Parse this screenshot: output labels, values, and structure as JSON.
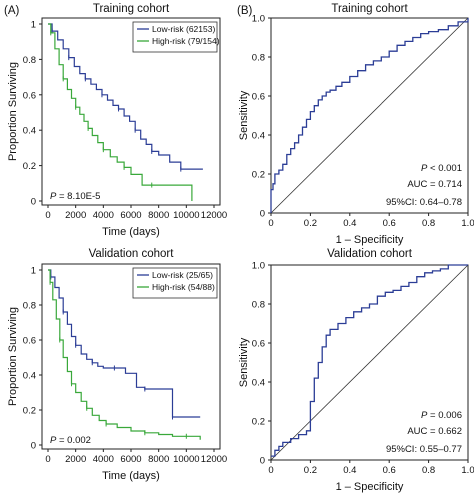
{
  "figure": {
    "panel_a_label": "(A)",
    "panel_b_label": "(B)"
  },
  "colors": {
    "low_risk": "#2b3d96",
    "high_risk": "#39a83a",
    "roc": "#2b3d96",
    "axis": "#222222"
  },
  "chart_data": [
    {
      "id": "km-training",
      "type": "line",
      "subtype": "kaplan-meier",
      "title": "Training cohort",
      "xlabel": "Time (days)",
      "ylabel": "Proportion Surviving",
      "xlim": [
        0,
        12000
      ],
      "ylim": [
        0,
        1
      ],
      "xticks": [
        0,
        2000,
        4000,
        6000,
        8000,
        10000,
        12000
      ],
      "yticks": [
        0,
        0.2,
        0.4,
        0.6,
        0.8,
        1
      ],
      "annotation_prefix": "P",
      "annotation_value": " = 8.10E-5",
      "legend_position": "top-right",
      "series": [
        {
          "name": "Low-risk (62153)",
          "color": "#2b3d96",
          "x": [
            0,
            300,
            700,
            1100,
            1500,
            1900,
            2300,
            2700,
            3100,
            3500,
            3900,
            4300,
            4700,
            5100,
            5500,
            5900,
            6300,
            6700,
            7100,
            7500,
            8000,
            8800,
            9600,
            10400,
            11200
          ],
          "y": [
            1.0,
            0.96,
            0.91,
            0.86,
            0.81,
            0.76,
            0.72,
            0.69,
            0.66,
            0.63,
            0.6,
            0.57,
            0.54,
            0.52,
            0.48,
            0.45,
            0.4,
            0.35,
            0.32,
            0.28,
            0.26,
            0.22,
            0.18,
            0.18,
            0.18
          ]
        },
        {
          "name": "High-risk (79/154)",
          "color": "#39a83a",
          "x": [
            0,
            200,
            500,
            800,
            1100,
            1400,
            1700,
            2000,
            2300,
            2600,
            2900,
            3200,
            3600,
            4000,
            4500,
            5000,
            5500,
            6000,
            6800,
            7500,
            8500,
            9500,
            10400
          ],
          "y": [
            1.0,
            0.95,
            0.86,
            0.77,
            0.69,
            0.63,
            0.58,
            0.53,
            0.49,
            0.45,
            0.41,
            0.37,
            0.33,
            0.29,
            0.25,
            0.22,
            0.19,
            0.15,
            0.09,
            0.09,
            0.09,
            0.09,
            0.0
          ]
        }
      ]
    },
    {
      "id": "roc-training",
      "type": "line",
      "subtype": "roc",
      "title": "Training cohort",
      "xlabel": "1 – Specificity",
      "ylabel": "Sensitivity",
      "xlim": [
        0,
        1
      ],
      "ylim": [
        0,
        1
      ],
      "xticks": [
        0,
        0.2,
        0.4,
        0.6,
        0.8,
        1
      ],
      "xtick_labels": [
        "0",
        "0.2",
        "0.4",
        "0.6",
        "0.8",
        "1.0"
      ],
      "yticks": [
        0,
        0.2,
        0.4,
        0.6,
        0.8,
        1
      ],
      "ytick_labels": [
        "0",
        "0.2",
        "0.4",
        "0.6",
        "0.8",
        "1.0"
      ],
      "stats": {
        "p_prefix": "P",
        "p_value": " < 0.001",
        "auc": "AUC = 0.714",
        "ci": "95%CI: 0.64–0.78"
      },
      "series": [
        {
          "name": "",
          "color": "#2b3d96",
          "x": [
            0,
            0,
            0.01,
            0.02,
            0.04,
            0.06,
            0.08,
            0.1,
            0.12,
            0.14,
            0.16,
            0.18,
            0.2,
            0.22,
            0.24,
            0.26,
            0.28,
            0.3,
            0.33,
            0.36,
            0.4,
            0.44,
            0.48,
            0.52,
            0.56,
            0.6,
            0.64,
            0.68,
            0.72,
            0.76,
            0.8,
            0.85,
            0.9,
            0.95,
            1.0
          ],
          "y": [
            0,
            0.12,
            0.15,
            0.2,
            0.22,
            0.25,
            0.3,
            0.33,
            0.36,
            0.4,
            0.44,
            0.48,
            0.52,
            0.55,
            0.58,
            0.6,
            0.62,
            0.63,
            0.65,
            0.67,
            0.7,
            0.73,
            0.76,
            0.78,
            0.8,
            0.83,
            0.86,
            0.88,
            0.9,
            0.92,
            0.93,
            0.94,
            0.96,
            0.98,
            1.0
          ]
        }
      ]
    },
    {
      "id": "km-validation",
      "type": "line",
      "subtype": "kaplan-meier",
      "title": "Validation cohort",
      "xlabel": "Time (days)",
      "ylabel": "Proportion Surviving",
      "xlim": [
        0,
        12000
      ],
      "ylim": [
        0,
        1
      ],
      "xticks": [
        0,
        2000,
        4000,
        6000,
        8000,
        10000,
        12000
      ],
      "yticks": [
        0,
        0.2,
        0.4,
        0.6,
        0.8,
        1
      ],
      "annotation_prefix": "P",
      "annotation_value": " = 0.002",
      "legend_position": "top-right",
      "series": [
        {
          "name": "Low-risk (25/65)",
          "color": "#2b3d96",
          "x": [
            0,
            200,
            500,
            800,
            1100,
            1400,
            1700,
            2000,
            2400,
            2800,
            3200,
            3600,
            4000,
            4800,
            5600,
            6400,
            7000,
            7600,
            8200,
            9000,
            10000,
            11000
          ],
          "y": [
            1.0,
            0.96,
            0.9,
            0.84,
            0.76,
            0.69,
            0.62,
            0.57,
            0.52,
            0.49,
            0.47,
            0.45,
            0.44,
            0.44,
            0.41,
            0.33,
            0.32,
            0.32,
            0.32,
            0.16,
            0.16,
            0.16
          ]
        },
        {
          "name": "High-risk (54/88)",
          "color": "#39a83a",
          "x": [
            0,
            150,
            350,
            600,
            850,
            1100,
            1400,
            1700,
            2000,
            2400,
            2800,
            3200,
            3700,
            4200,
            5000,
            6000,
            7000,
            8000,
            9000,
            10000,
            11000
          ],
          "y": [
            1.0,
            0.93,
            0.83,
            0.72,
            0.6,
            0.5,
            0.42,
            0.35,
            0.3,
            0.25,
            0.21,
            0.17,
            0.14,
            0.12,
            0.1,
            0.08,
            0.07,
            0.06,
            0.05,
            0.05,
            0.03
          ]
        }
      ]
    },
    {
      "id": "roc-validation",
      "type": "line",
      "subtype": "roc",
      "title": "Validation cohort",
      "xlabel": "1 – Specificity",
      "ylabel": "Sensitivity",
      "xlim": [
        0,
        1
      ],
      "ylim": [
        0,
        1
      ],
      "xticks": [
        0,
        0.2,
        0.4,
        0.6,
        0.8,
        1
      ],
      "xtick_labels": [
        "0",
        "0.2",
        "0.4",
        "0.6",
        "0.8",
        "1.0"
      ],
      "yticks": [
        0,
        0.2,
        0.4,
        0.6,
        0.8,
        1
      ],
      "ytick_labels": [
        "0",
        "0.2",
        "0.4",
        "0.6",
        "0.8",
        "1.0"
      ],
      "stats": {
        "p_prefix": "P",
        "p_value": " = 0.006",
        "auc": "AUC = 0.662",
        "ci": "95%CI: 0.55–0.77"
      },
      "series": [
        {
          "name": "",
          "color": "#2b3d96",
          "x": [
            0,
            0.02,
            0.04,
            0.06,
            0.1,
            0.14,
            0.18,
            0.2,
            0.22,
            0.24,
            0.26,
            0.28,
            0.3,
            0.34,
            0.38,
            0.42,
            0.46,
            0.5,
            0.54,
            0.58,
            0.62,
            0.66,
            0.7,
            0.74,
            0.78,
            0.82,
            0.86,
            0.9,
            0.95,
            1.0
          ],
          "y": [
            0.02,
            0.05,
            0.07,
            0.09,
            0.11,
            0.13,
            0.15,
            0.3,
            0.42,
            0.5,
            0.58,
            0.64,
            0.67,
            0.7,
            0.73,
            0.76,
            0.78,
            0.8,
            0.84,
            0.86,
            0.87,
            0.89,
            0.91,
            0.94,
            0.96,
            0.97,
            0.98,
            1.0,
            1.0,
            1.0
          ]
        }
      ]
    }
  ]
}
